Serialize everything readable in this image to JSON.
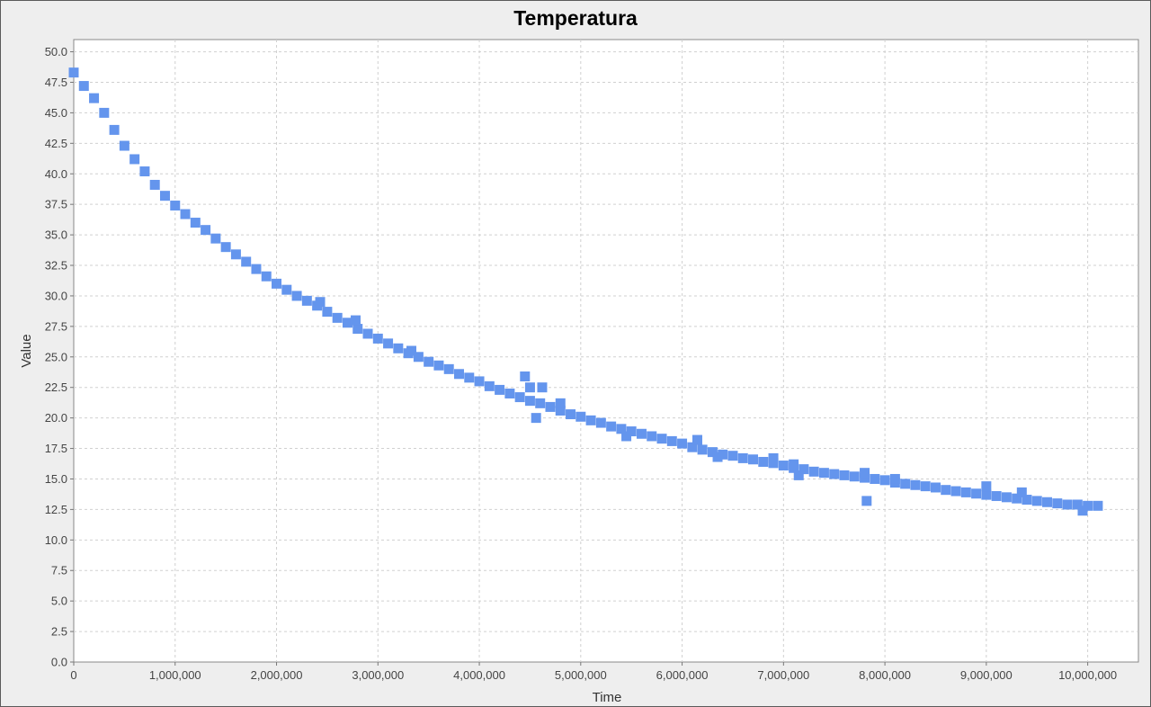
{
  "chart_data": {
    "type": "scatter",
    "title": "Temperatura",
    "xlabel": "Time",
    "ylabel": "Value",
    "xlim": [
      0,
      10500000
    ],
    "ylim": [
      0,
      51
    ],
    "x_ticks": [
      0,
      1000000,
      2000000,
      3000000,
      4000000,
      5000000,
      6000000,
      7000000,
      8000000,
      9000000,
      10000000
    ],
    "x_tick_labels": [
      "0",
      "1,000,000",
      "2,000,000",
      "3,000,000",
      "4,000,000",
      "5,000,000",
      "6,000,000",
      "7,000,000",
      "8,000,000",
      "9,000,000",
      "10,000,000"
    ],
    "y_ticks": [
      0,
      2.5,
      5,
      7.5,
      10,
      12.5,
      15,
      17.5,
      20,
      22.5,
      25,
      27.5,
      30,
      32.5,
      35,
      37.5,
      40,
      42.5,
      45,
      47.5,
      50
    ],
    "y_tick_labels": [
      "0.0",
      "2.5",
      "5.0",
      "7.5",
      "10.0",
      "12.5",
      "15.0",
      "17.5",
      "20.0",
      "22.5",
      "25.0",
      "27.5",
      "30.0",
      "32.5",
      "35.0",
      "37.5",
      "40.0",
      "42.5",
      "45.0",
      "47.5",
      "50.0"
    ],
    "grid": true,
    "marker_color": "#6495ED",
    "series": [
      {
        "points": [
          [
            0,
            48.3
          ],
          [
            100000,
            47.2
          ],
          [
            200000,
            46.2
          ],
          [
            300000,
            45.0
          ],
          [
            400000,
            43.6
          ],
          [
            500000,
            42.3
          ],
          [
            600000,
            41.2
          ],
          [
            700000,
            40.2
          ],
          [
            800000,
            39.1
          ],
          [
            900000,
            38.2
          ],
          [
            1000000,
            37.4
          ],
          [
            1100000,
            36.7
          ],
          [
            1200000,
            36.0
          ],
          [
            1300000,
            35.4
          ],
          [
            1400000,
            34.7
          ],
          [
            1500000,
            34.0
          ],
          [
            1600000,
            33.4
          ],
          [
            1700000,
            32.8
          ],
          [
            1800000,
            32.2
          ],
          [
            1900000,
            31.6
          ],
          [
            2000000,
            31.0
          ],
          [
            2100000,
            30.5
          ],
          [
            2200000,
            30.0
          ],
          [
            2300000,
            29.6
          ],
          [
            2400000,
            29.2
          ],
          [
            2500000,
            28.7
          ],
          [
            2600000,
            28.2
          ],
          [
            2700000,
            27.8
          ],
          [
            2800000,
            27.3
          ],
          [
            2900000,
            26.9
          ],
          [
            3000000,
            26.5
          ],
          [
            3100000,
            26.1
          ],
          [
            3200000,
            25.7
          ],
          [
            3300000,
            25.3
          ],
          [
            3400000,
            25.0
          ],
          [
            3500000,
            24.6
          ],
          [
            3600000,
            24.3
          ],
          [
            3700000,
            24.0
          ],
          [
            3800000,
            23.6
          ],
          [
            3900000,
            23.3
          ],
          [
            4000000,
            23.0
          ],
          [
            4100000,
            22.6
          ],
          [
            4200000,
            22.3
          ],
          [
            4300000,
            22.0
          ],
          [
            4400000,
            21.7
          ],
          [
            4500000,
            21.4
          ],
          [
            4600000,
            21.2
          ],
          [
            4700000,
            20.9
          ],
          [
            4800000,
            20.6
          ],
          [
            4900000,
            20.3
          ],
          [
            5000000,
            20.1
          ],
          [
            5100000,
            19.8
          ],
          [
            5200000,
            19.6
          ],
          [
            5300000,
            19.3
          ],
          [
            5400000,
            19.1
          ],
          [
            5500000,
            18.9
          ],
          [
            5600000,
            18.7
          ],
          [
            5700000,
            18.5
          ],
          [
            5800000,
            18.3
          ],
          [
            5900000,
            18.1
          ],
          [
            6000000,
            17.9
          ],
          [
            6100000,
            17.6
          ],
          [
            6200000,
            17.4
          ],
          [
            6300000,
            17.2
          ],
          [
            6400000,
            17.0
          ],
          [
            6500000,
            16.9
          ],
          [
            6600000,
            16.7
          ],
          [
            6700000,
            16.6
          ],
          [
            6800000,
            16.4
          ],
          [
            6900000,
            16.3
          ],
          [
            7000000,
            16.1
          ],
          [
            7100000,
            15.9
          ],
          [
            7200000,
            15.8
          ],
          [
            7300000,
            15.6
          ],
          [
            7400000,
            15.5
          ],
          [
            7500000,
            15.4
          ],
          [
            7600000,
            15.3
          ],
          [
            7700000,
            15.2
          ],
          [
            7800000,
            15.1
          ],
          [
            7900000,
            15.0
          ],
          [
            8000000,
            14.9
          ],
          [
            8100000,
            14.7
          ],
          [
            8200000,
            14.6
          ],
          [
            8300000,
            14.5
          ],
          [
            8400000,
            14.4
          ],
          [
            8500000,
            14.3
          ],
          [
            8600000,
            14.1
          ],
          [
            8700000,
            14.0
          ],
          [
            8800000,
            13.9
          ],
          [
            8900000,
            13.8
          ],
          [
            9000000,
            13.7
          ],
          [
            9100000,
            13.6
          ],
          [
            9200000,
            13.5
          ],
          [
            9300000,
            13.4
          ],
          [
            9400000,
            13.3
          ],
          [
            9500000,
            13.2
          ],
          [
            9600000,
            13.1
          ],
          [
            9700000,
            13.0
          ],
          [
            9800000,
            12.9
          ],
          [
            9900000,
            12.9
          ],
          [
            10000000,
            12.8
          ],
          [
            10100000,
            12.8
          ],
          [
            4450000,
            23.4
          ],
          [
            4500000,
            22.5
          ],
          [
            4620000,
            22.5
          ],
          [
            4560000,
            20.0
          ],
          [
            4800000,
            21.2
          ],
          [
            2430000,
            29.5
          ],
          [
            3330000,
            25.5
          ],
          [
            2780000,
            28.0
          ],
          [
            7820000,
            13.2
          ],
          [
            7150000,
            15.3
          ],
          [
            9000000,
            14.4
          ],
          [
            9350000,
            13.9
          ],
          [
            9950000,
            12.4
          ],
          [
            5450000,
            18.5
          ],
          [
            6350000,
            16.8
          ],
          [
            6150000,
            18.2
          ],
          [
            7800000,
            15.5
          ],
          [
            8100000,
            15.0
          ],
          [
            6900000,
            16.7
          ],
          [
            7100000,
            16.2
          ]
        ]
      }
    ]
  }
}
